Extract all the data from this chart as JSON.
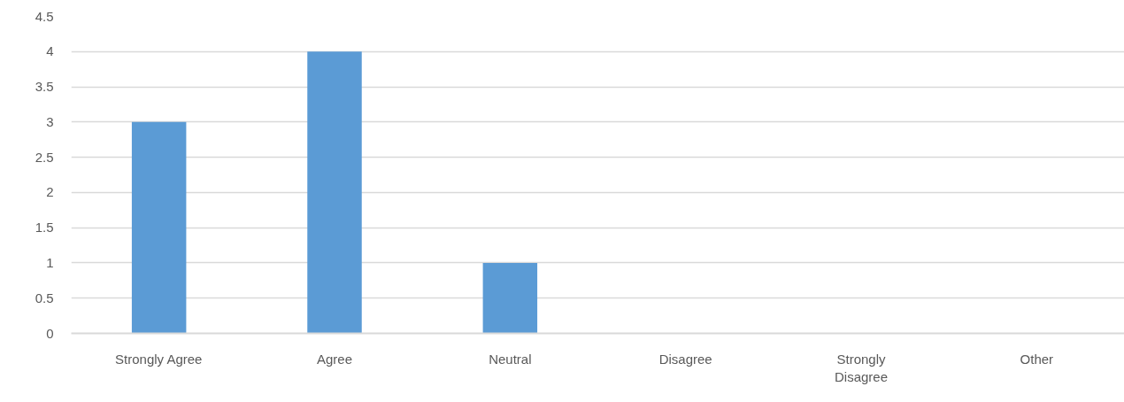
{
  "chart_data": {
    "type": "bar",
    "categories": [
      "Strongly Agree",
      "Agree",
      "Neutral",
      "Disagree",
      "Strongly Disagree",
      "Other"
    ],
    "values": [
      3,
      4,
      1,
      0,
      0,
      0
    ],
    "color": "#5b9bd5",
    "ylim": [
      0,
      4.5
    ],
    "yticks": [
      0,
      0.5,
      1,
      1.5,
      2,
      2.5,
      3,
      3.5,
      4,
      4.5
    ],
    "grid": "y"
  }
}
